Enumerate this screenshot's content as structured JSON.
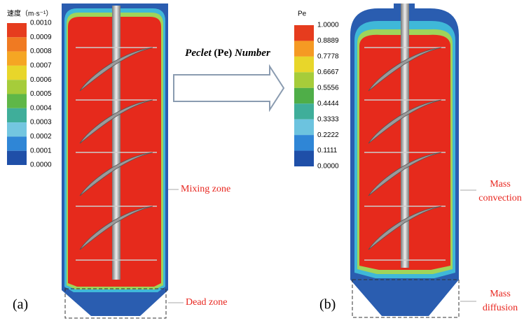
{
  "figure": {
    "arrow_label": {
      "name": "Peclet",
      "symbol": "(Pe)",
      "word": "Number"
    },
    "panel_a": {
      "label": "(a)",
      "colorbar": {
        "title": "速度（m·s⁻¹）",
        "ticks": [
          "0.0010",
          "0.0009",
          "0.0008",
          "0.0007",
          "0.0006",
          "0.0005",
          "0.0004",
          "0.0003",
          "0.0002",
          "0.0001",
          "0.0000"
        ]
      },
      "annotations": {
        "mixing_zone": "Mixing zone",
        "dead_zone": "Dead zone"
      }
    },
    "panel_b": {
      "label": "(b)",
      "colorbar": {
        "title": "Pe",
        "ticks": [
          "1.0000",
          "0.8889",
          "0.7778",
          "0.6667",
          "0.5556",
          "0.4444",
          "0.3333",
          "0.2222",
          "0.1111",
          "0.0000"
        ]
      },
      "annotations": {
        "convection_line1": "Mass",
        "convection_line2": "convection",
        "diffusion_line1": "Mass",
        "diffusion_line2": "diffusion"
      }
    }
  }
}
